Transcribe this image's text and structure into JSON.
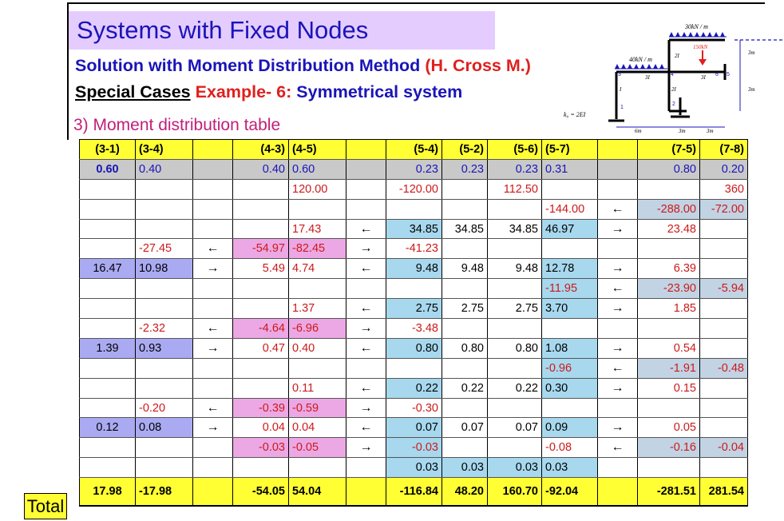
{
  "title": "Systems with Fixed Nodes",
  "subtitle": {
    "method": "Solution with Moment Distribution Method",
    "author": "(H. Cross M.)"
  },
  "case_line": {
    "special": "Special Cases",
    "example": "Example- 6:",
    "desc": "Symmetrical system"
  },
  "section": "3) Moment distribution table",
  "diagram": {
    "load_top": "30kN / m",
    "load_left": "40kN / m",
    "point_load": "150kN",
    "ko": "k₀ = 2EI",
    "members": [
      "2I",
      "3I",
      "3I",
      "I",
      "2I"
    ],
    "nodes": [
      "1",
      "2",
      "3",
      "4",
      "5",
      "6"
    ],
    "dims": [
      "6m",
      "3m",
      "3m",
      "3m",
      "3m"
    ]
  },
  "table": {
    "headers": [
      "(3-1)",
      "(3-4)",
      "",
      "(4-3)",
      "(4-5)",
      "",
      "(5-4)",
      "(5-2)",
      "(5-6)",
      "(5-7)",
      "",
      "(7-5)",
      "(7-8)"
    ],
    "df": [
      "0.60",
      "0.40",
      "",
      "0.40",
      "0.60",
      "",
      "0.23",
      "0.23",
      "0.23",
      "0.31",
      "",
      "0.80",
      "0.20"
    ],
    "rows": [
      [
        "",
        "",
        "",
        "",
        "120.00",
        "",
        "-120.00",
        "",
        "112.50",
        "",
        "",
        "",
        "360"
      ],
      [
        "",
        "",
        "",
        "",
        "",
        "",
        "",
        "",
        "",
        "-144.00",
        "←",
        "-288.00",
        "-72.00"
      ],
      [
        "",
        "",
        "",
        "",
        "17.43",
        "←",
        "34.85",
        "34.85",
        "34.85",
        "46.97",
        "→",
        "23.48",
        ""
      ],
      [
        "",
        "-27.45",
        "←",
        "-54.97",
        "-82.45",
        "→",
        "-41.23",
        "",
        "",
        "",
        "",
        "",
        ""
      ],
      [
        "16.47",
        "10.98",
        "→",
        "5.49",
        "4.74",
        "←",
        "9.48",
        "9.48",
        "9.48",
        "12.78",
        "→",
        "6.39",
        ""
      ],
      [
        "",
        "",
        "",
        "",
        "",
        "",
        "",
        "",
        "",
        "-11.95",
        "←",
        "-23.90",
        "-5.94"
      ],
      [
        "",
        "",
        "",
        "",
        "1.37",
        "←",
        "2.75",
        "2.75",
        "2.75",
        "3.70",
        "→",
        "1.85",
        ""
      ],
      [
        "",
        "-2.32",
        "←",
        "-4.64",
        "-6.96",
        "→",
        "-3.48",
        "",
        "",
        "",
        "",
        "",
        ""
      ],
      [
        "1.39",
        "0.93",
        "→",
        "0.47",
        "0.40",
        "←",
        "0.80",
        "0.80",
        "0.80",
        "1.08",
        "→",
        "0.54",
        ""
      ],
      [
        "",
        "",
        "",
        "",
        "",
        "",
        "",
        "",
        "",
        "-0.96",
        "←",
        "-1.91",
        "-0.48"
      ],
      [
        "",
        "",
        "",
        "",
        "0.11",
        "←",
        "0.22",
        "0.22",
        "0.22",
        "0.30",
        "→",
        "0.15",
        ""
      ],
      [
        "",
        "-0.20",
        "←",
        "-0.39",
        "-0.59",
        "→",
        "-0.30",
        "",
        "",
        "",
        "",
        "",
        ""
      ],
      [
        "0.12",
        "0.08",
        "→",
        "0.04",
        "0.04",
        "←",
        "0.07",
        "0.07",
        "0.07",
        "0.09",
        "→",
        "0.05",
        ""
      ],
      [
        "",
        "",
        "",
        "-0.03",
        "-0.05",
        "→",
        "-0.03",
        "",
        "",
        "-0.08",
        "←",
        "-0.16",
        "-0.04"
      ],
      [
        "",
        "",
        "",
        "",
        "",
        "",
        "0.03",
        "0.03",
        "0.03",
        "0.03",
        "",
        "",
        ""
      ]
    ],
    "totals": [
      "17.98",
      "-17.98",
      "",
      "-54.05",
      "54.04",
      "",
      "-116.84",
      "48.20",
      "160.70",
      "-92.04",
      "",
      "-281.51",
      "281.54"
    ],
    "total_label": "Total"
  },
  "colors": {
    "title_bg": "#e4ccff",
    "title_text": "#1a14b8",
    "accent_red": "#e0201e",
    "header_bg": "#ffff33",
    "df_bg": "#c9c9c9",
    "blue_cell": "#a7d8ee",
    "violet_cell": "#aaaaf2",
    "pink_cell": "#eca8e4",
    "grayblue_cell": "#c2d3e4"
  }
}
